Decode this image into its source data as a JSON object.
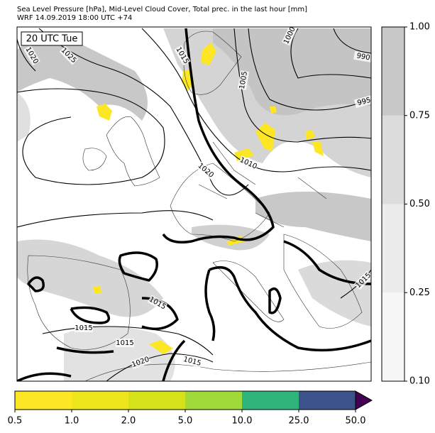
{
  "map": {
    "title": "Sea Level Pressure [hPa], Mid-Level Cloud Cover, Total prec. in the last hour [mm]",
    "subtitle": "WRF 14.09.2019 18:00 UTC +74",
    "time_label": "20 UTC Tue",
    "contour_labels": [
      "1020",
      "1025",
      "1015",
      "1000",
      "990",
      "1005",
      "995",
      "1010",
      "1020",
      "1015",
      "1015",
      "1015",
      "1020",
      "1015",
      "1015"
    ],
    "cloud_colorbar": {
      "ticks": [
        {
          "value": 0.1,
          "label": "0.10"
        },
        {
          "value": 0.25,
          "label": "0.25"
        },
        {
          "value": 0.5,
          "label": "0.50"
        },
        {
          "value": 0.75,
          "label": "0.75"
        },
        {
          "value": 1.0,
          "label": "1.00"
        }
      ],
      "colors": [
        "#f7f7f7",
        "#ececec",
        "#dcdcdc",
        "#c8c8c8"
      ]
    },
    "precip_colorbar": {
      "ticks": [
        {
          "value": 0.5,
          "label": "0.5"
        },
        {
          "value": 1.0,
          "label": "1.0"
        },
        {
          "value": 2.0,
          "label": "2.0"
        },
        {
          "value": 5.0,
          "label": "5.0"
        },
        {
          "value": 10.0,
          "label": "10.0"
        },
        {
          "value": 25.0,
          "label": "25.0"
        },
        {
          "value": 50.0,
          "label": "50.0"
        }
      ],
      "colors": [
        "#fde725",
        "#efe51c",
        "#d5e21a",
        "#a0da39",
        "#2fb47c",
        "#3b528b"
      ],
      "extend_color": "#440154"
    }
  }
}
